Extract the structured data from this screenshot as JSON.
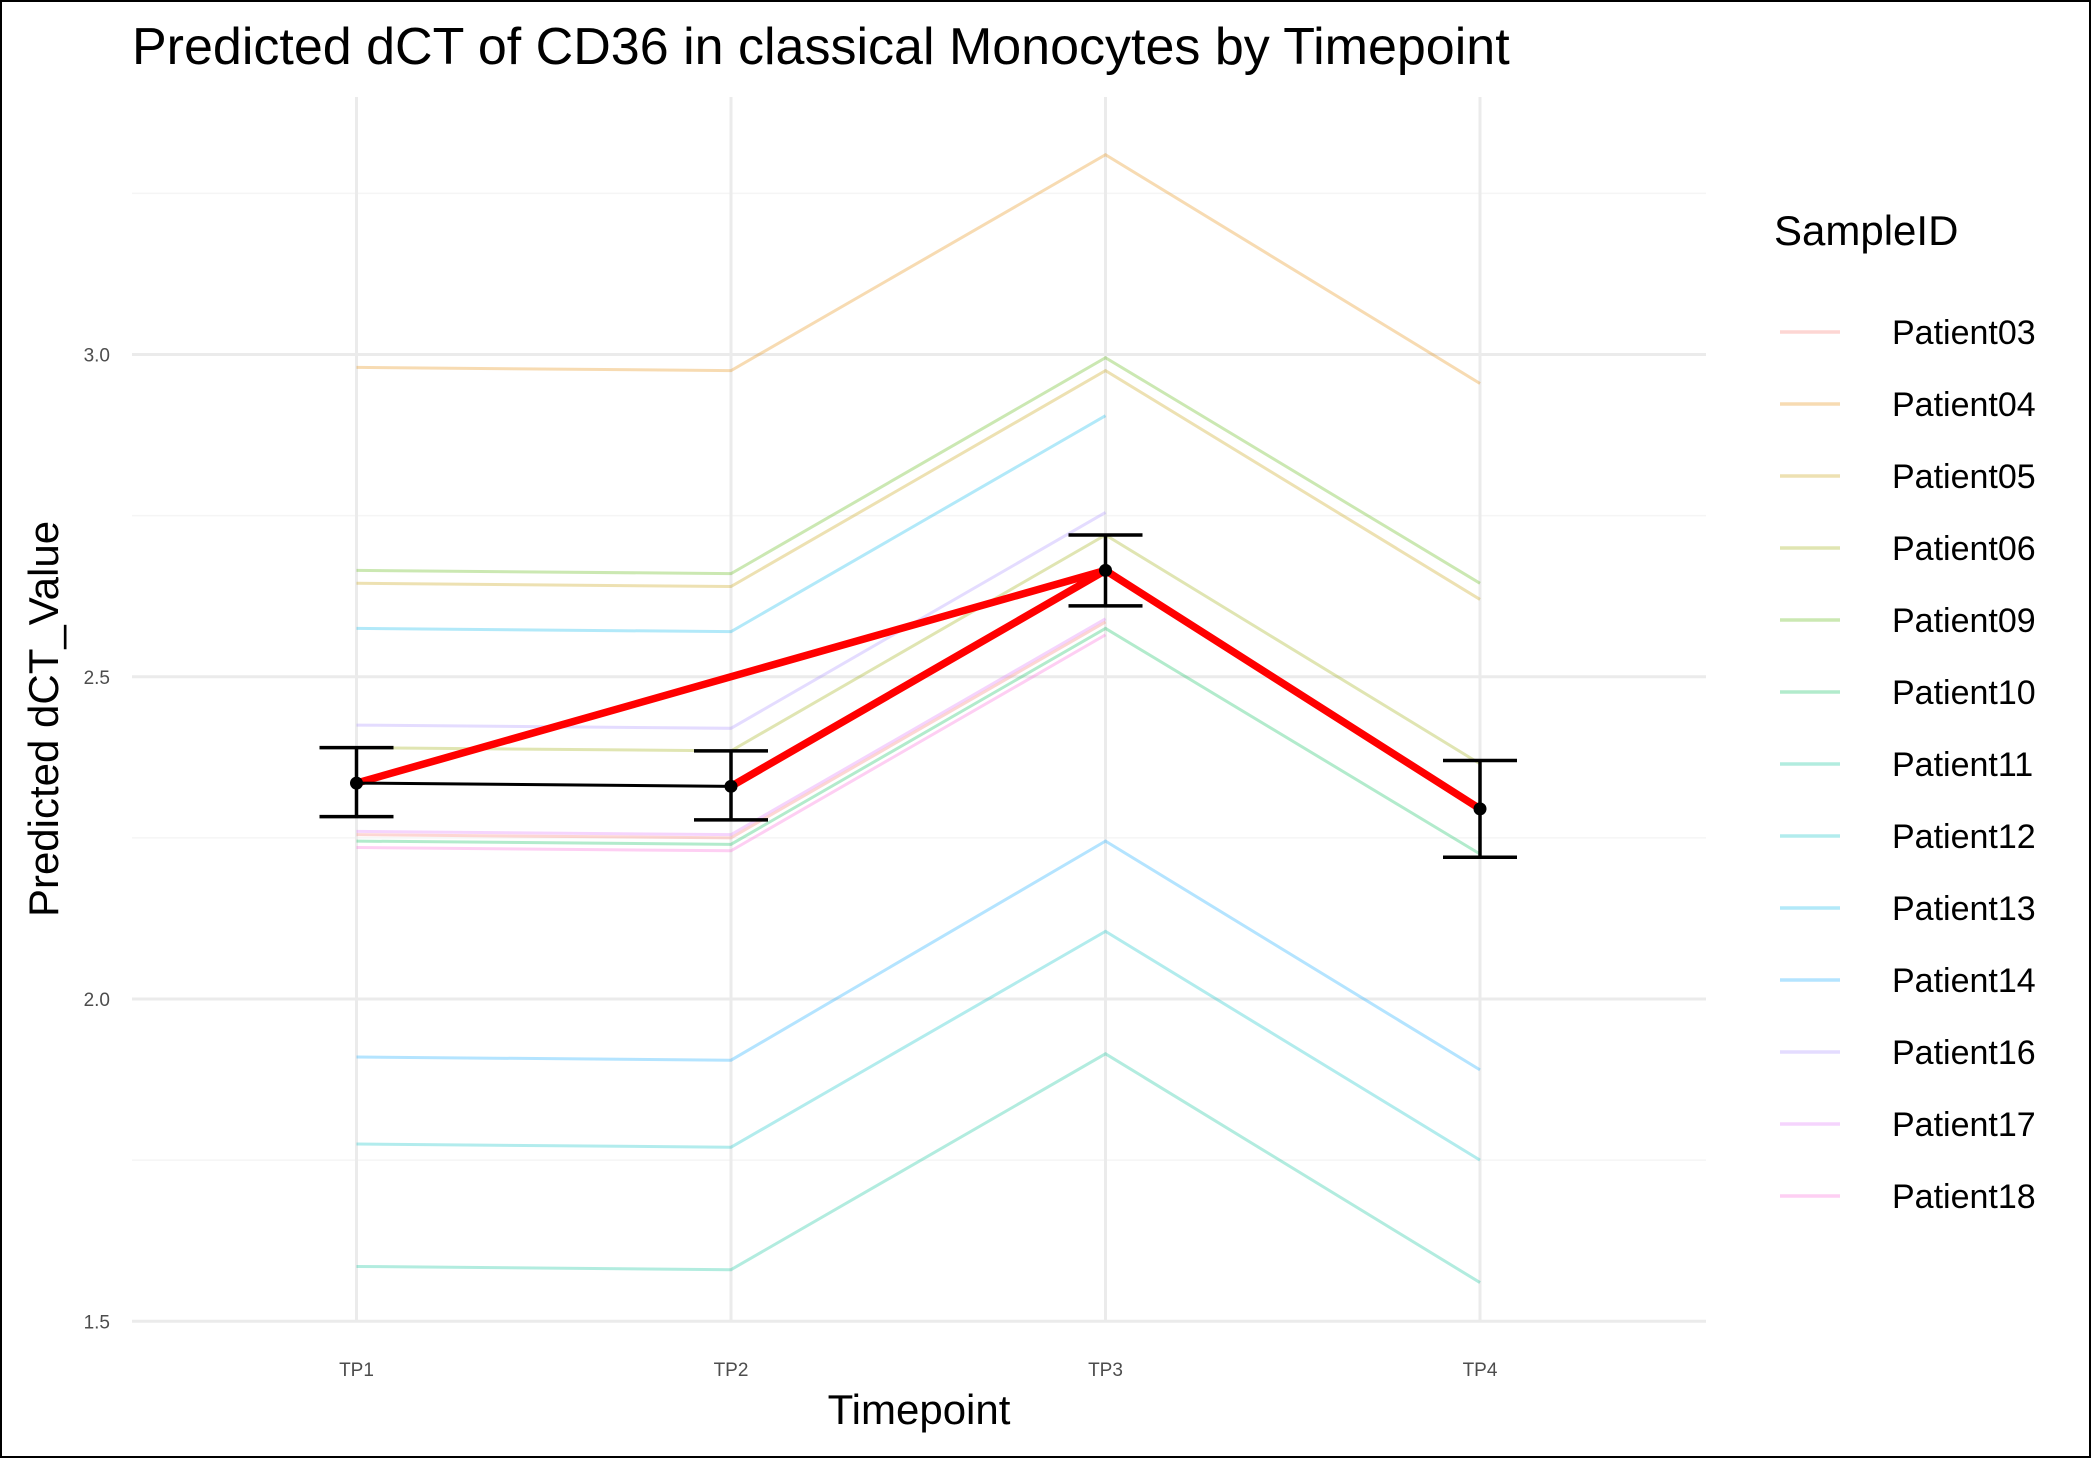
{
  "chart_data": {
    "type": "line",
    "title": "Predicted dCT of  CD36 in  classical  Monocytes by Timepoint",
    "xlabel": "Timepoint",
    "ylabel": "Predicted dCT_Value",
    "categories": [
      "TP1",
      "TP2",
      "TP3",
      "TP4"
    ],
    "ylim": [
      1.45,
      3.5
    ],
    "yticks": [
      1.5,
      2.0,
      2.5,
      3.0
    ],
    "ytick_labels": [
      "1.5",
      "2.0",
      "2.5",
      "3.0"
    ],
    "grid": true,
    "legend": {
      "title": "SampleID",
      "position": "right"
    },
    "series": [
      {
        "name": "Patient03",
        "color": "#F8766D",
        "values": [
          2.255,
          2.25,
          2.585,
          null
        ]
      },
      {
        "name": "Patient04",
        "color": "#E38900",
        "values": [
          2.98,
          2.975,
          3.31,
          2.955
        ]
      },
      {
        "name": "Patient05",
        "color": "#C49A00",
        "values": [
          2.645,
          2.64,
          2.975,
          2.62
        ]
      },
      {
        "name": "Patient06",
        "color": "#99A800",
        "values": [
          2.39,
          2.385,
          2.72,
          2.365
        ]
      },
      {
        "name": "Patient09",
        "color": "#53B400",
        "values": [
          2.665,
          2.66,
          2.995,
          2.645
        ]
      },
      {
        "name": "Patient10",
        "color": "#00BC56",
        "values": [
          2.245,
          2.24,
          2.575,
          2.225
        ]
      },
      {
        "name": "Patient11",
        "color": "#00C094",
        "values": [
          1.585,
          1.58,
          1.915,
          1.56
        ]
      },
      {
        "name": "Patient12",
        "color": "#00BFC4",
        "values": [
          1.775,
          1.77,
          2.105,
          1.75
        ]
      },
      {
        "name": "Patient13",
        "color": "#00B6EB",
        "values": [
          2.575,
          2.57,
          2.905,
          null
        ]
      },
      {
        "name": "Patient14",
        "color": "#06A4FF",
        "values": [
          1.91,
          1.905,
          2.245,
          1.89
        ]
      },
      {
        "name": "Patient16",
        "color": "#A58AFF",
        "values": [
          2.425,
          2.42,
          2.755,
          null
        ]
      },
      {
        "name": "Patient17",
        "color": "#DF70F8",
        "values": [
          2.26,
          2.255,
          2.59,
          null
        ]
      },
      {
        "name": "Patient18",
        "color": "#FB61D7",
        "values": [
          2.235,
          2.23,
          2.565,
          null
        ]
      }
    ],
    "mean_line": {
      "color": "#000000",
      "values": [
        2.335,
        2.33,
        2.665,
        2.295
      ],
      "ci_lower": [
        2.283,
        2.278,
        2.61,
        2.22
      ],
      "ci_upper": [
        2.39,
        2.385,
        2.72,
        2.37
      ]
    },
    "highlight_path": {
      "color": "#FF0000",
      "points": [
        [
          "TP1",
          2.335
        ],
        [
          "TP3",
          2.665
        ],
        [
          "TP2",
          2.33
        ],
        [
          "TP3",
          2.665
        ],
        [
          "TP4",
          2.295
        ]
      ]
    }
  }
}
